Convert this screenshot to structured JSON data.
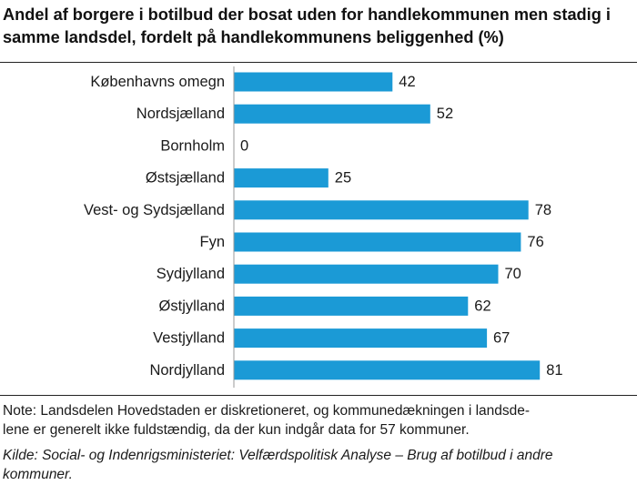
{
  "header": {
    "title_line1": "Andel af borgere i botilbud der bosat uden for handlekommunen men stadig i",
    "title_line2": "samme landsdel, fordelt på handlekommunens beliggenhed (%)"
  },
  "footer": {
    "note_line1": "Note: Landsdelen Hovedstaden er diskretioneret, og kommunedækningen i landsde-",
    "note_line2": "lene er generelt ikke fuldstændig, da der kun indgår data for 57 kommuner.",
    "source_line1": "Kilde: Social- og Indenrigsministeriet: Velfærdspolitisk Analyse – Brug af botilbud i andre",
    "source_line2": "kommuner."
  },
  "colors": {
    "bar": "#1b9ad6",
    "axis": "#999999",
    "rule": "#222222"
  },
  "chart_data": {
    "type": "bar",
    "orientation": "horizontal",
    "title": "Andel af borgere i botilbud der bosat uden for handlekommunen men stadig i samme landsdel, fordelt på handlekommunens beliggenhed (%)",
    "xlabel": "",
    "ylabel": "",
    "xlim": [
      0,
      100
    ],
    "grid": false,
    "categories": [
      "Københavns omegn",
      "Nordsjælland",
      "Bornholm",
      "Østsjælland",
      "Vest- og Sydsjælland",
      "Fyn",
      "Sydjylland",
      "Østjylland",
      "Vestjylland",
      "Nordjylland"
    ],
    "values": [
      42,
      52,
      0,
      25,
      78,
      76,
      70,
      62,
      67,
      81
    ]
  }
}
